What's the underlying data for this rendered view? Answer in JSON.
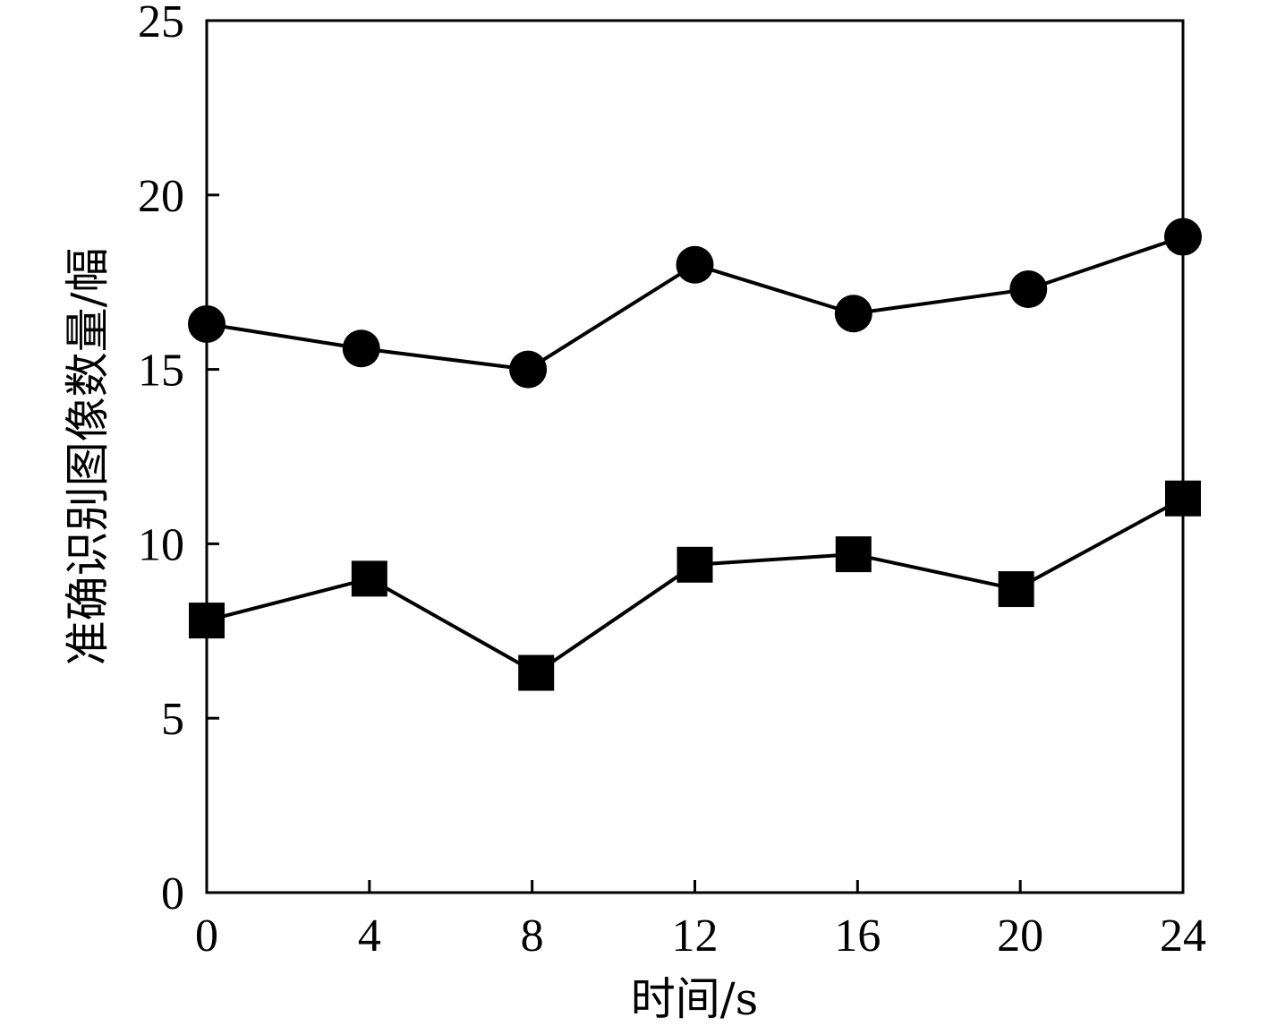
{
  "chart_data": {
    "type": "line",
    "xlabel": "时间/s",
    "ylabel": "准确识别图像数量/幅",
    "title": "",
    "xlim": [
      0,
      24
    ],
    "ylim": [
      0,
      25
    ],
    "x_ticks": [
      0,
      4,
      8,
      12,
      16,
      20,
      24
    ],
    "y_ticks": [
      0,
      5,
      10,
      15,
      20,
      25
    ],
    "grid": false,
    "colors": {
      "line": "#000000",
      "marker": "#000000",
      "axis": "#000000"
    },
    "series": [
      {
        "marker": "circle",
        "x": [
          0,
          3.8,
          7.9,
          12.0,
          15.9,
          20.2,
          24.0
        ],
        "values": [
          16.3,
          15.6,
          15.0,
          18.0,
          16.6,
          17.3,
          18.8
        ]
      },
      {
        "marker": "square",
        "x": [
          0,
          4.0,
          8.1,
          12.0,
          15.9,
          19.9,
          24.0
        ],
        "values": [
          7.8,
          9.0,
          6.3,
          9.4,
          9.7,
          8.7,
          11.3
        ]
      }
    ]
  }
}
